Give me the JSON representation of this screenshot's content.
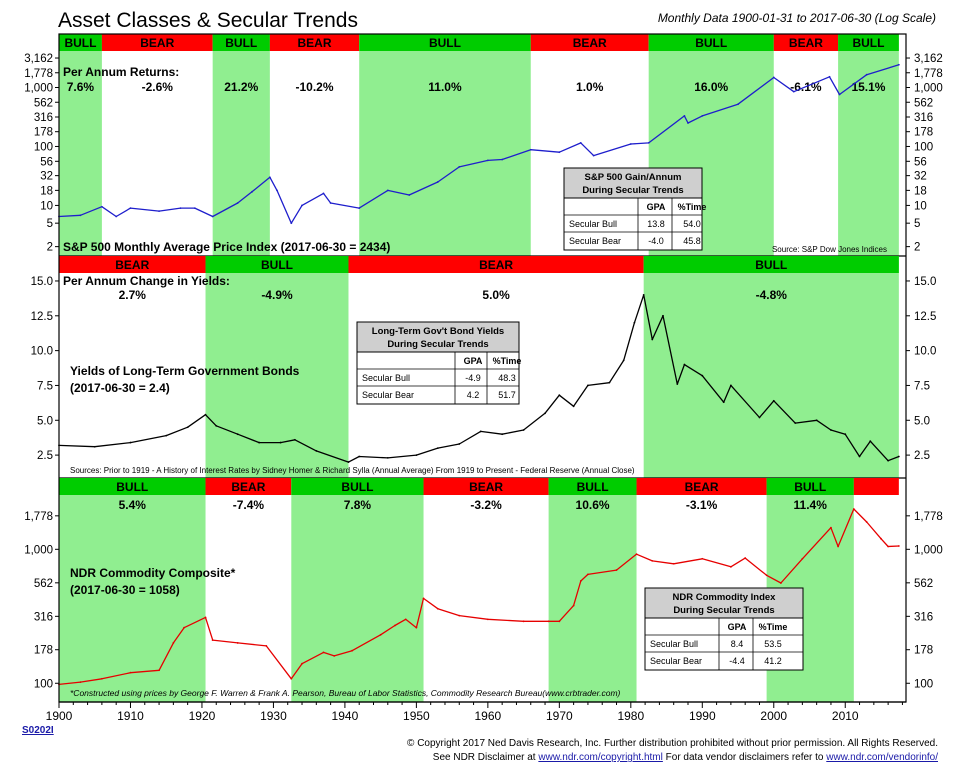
{
  "header": {
    "title": "Asset Classes & Secular Trends",
    "subtitle": "Monthly Data 1900-01-31 to 2017-06-30 (Log Scale)"
  },
  "colors": {
    "bull": "#90ee90",
    "bear": "#ff0000",
    "bull_label": "#00cc00",
    "sp_line": "#1e1ecc",
    "yield_line": "#000000",
    "cmd_line": "#e60000"
  },
  "chart_data": [
    {
      "type": "line",
      "title": "S&P 500 Monthly Average Price Index (2017-06-30 = 2434)",
      "regimes_heading": "Per Annum Returns:",
      "scale": "log",
      "ylim": [
        1.5,
        4000
      ],
      "yticks": [
        "3,162",
        "1,778",
        "1,000",
        "562",
        "316",
        "178",
        "100",
        "56",
        "32",
        "18",
        "10",
        "5",
        "2"
      ],
      "ytick_values": [
        3162,
        1778,
        1000,
        562,
        316,
        178,
        100,
        56,
        32,
        18,
        10,
        5,
        2
      ],
      "source": "Source:  S&P Dow Jones Indices",
      "regimes": [
        {
          "label": "BULL",
          "start": 1900,
          "end": 1906,
          "ret": "7.6%"
        },
        {
          "label": "BEAR",
          "start": 1906,
          "end": 1921.5,
          "ret": "-2.6%"
        },
        {
          "label": "BULL",
          "start": 1921.5,
          "end": 1929.5,
          "ret": "21.2%"
        },
        {
          "label": "BEAR",
          "start": 1929.5,
          "end": 1942,
          "ret": "-10.2%"
        },
        {
          "label": "BULL",
          "start": 1942,
          "end": 1966,
          "ret": "11.0%"
        },
        {
          "label": "BEAR",
          "start": 1966,
          "end": 1982.5,
          "ret": "1.0%"
        },
        {
          "label": "BULL",
          "start": 1982.5,
          "end": 2000,
          "ret": "16.0%"
        },
        {
          "label": "BEAR",
          "start": 2000,
          "end": 2009,
          "ret": "-6.1%"
        },
        {
          "label": "BULL",
          "start": 2009,
          "end": 2017.5,
          "ret": "15.1%"
        }
      ],
      "series": [
        {
          "x": [
            1900,
            1903,
            1906,
            1908,
            1910,
            1914,
            1917,
            1919,
            1921.5,
            1925,
            1927,
            1929.5,
            1930.5,
            1932.5,
            1934,
            1937,
            1938,
            1942,
            1946,
            1949,
            1953,
            1956,
            1960,
            1962,
            1966,
            1970,
            1973,
            1974.8,
            1980,
            1982.5,
            1987.5,
            1988,
            1990,
            1995,
            2000,
            2002.8,
            2007.8,
            2009.2,
            2013,
            2017.5
          ],
          "y": [
            6.5,
            6.8,
            9.5,
            6.5,
            9,
            8,
            9,
            9,
            6.5,
            11,
            17,
            30,
            18,
            5,
            10,
            16,
            11,
            9,
            18,
            15,
            25,
            45,
            58,
            60,
            88,
            80,
            115,
            70,
            110,
            115,
            330,
            250,
            330,
            520,
            1480,
            850,
            1520,
            760,
            1650,
            2430
          ]
        }
      ],
      "table": {
        "title": "S&P 500 Gain/Annum During Secular Trends",
        "headers": [
          "",
          "GPA",
          "%Time"
        ],
        "rows": [
          [
            "Secular Bull",
            "13.8",
            "54.0"
          ],
          [
            "Secular Bear",
            "-4.0",
            "45.8"
          ]
        ]
      }
    },
    {
      "type": "line",
      "title": "Yields of Long-Term Government Bonds (2017-06-30 = 2.4)",
      "regimes_heading": "Per Annum Change in Yields:",
      "scale": "linear",
      "ylim": [
        1.0,
        15.5
      ],
      "yticks": [
        "15.0",
        "12.5",
        "10.0",
        "7.5",
        "5.0",
        "2.5"
      ],
      "ytick_values": [
        15,
        12.5,
        10,
        7.5,
        5,
        2.5
      ],
      "source": "Sources: Prior to 1919 - A History of Interest Rates by Sidney Homer & Richard Sylla (Annual Average) From 1919 to Present - Federal Reserve (Annual Close)",
      "regimes": [
        {
          "label": "BEAR",
          "start": 1900,
          "end": 1920.5,
          "ret": "2.7%"
        },
        {
          "label": "BULL",
          "start": 1920.5,
          "end": 1940.5,
          "ret": "-4.9%"
        },
        {
          "label": "BEAR",
          "start": 1940.5,
          "end": 1981.8,
          "ret": "5.0%"
        },
        {
          "label": "BULL",
          "start": 1981.8,
          "end": 2017.5,
          "ret": "-4.8%"
        }
      ],
      "series": [
        {
          "x": [
            1900,
            1905,
            1910,
            1915,
            1918,
            1920.5,
            1922,
            1925,
            1928,
            1931,
            1933,
            1936,
            1940.5,
            1942,
            1946,
            1950,
            1953,
            1956,
            1959,
            1962,
            1965,
            1968,
            1970,
            1972,
            1974,
            1977,
            1979,
            1980.5,
            1981.8,
            1983,
            1984.5,
            1986.5,
            1987.5,
            1990,
            1993,
            1994,
            1998,
            2000,
            2003,
            2006,
            2008,
            2010,
            2012,
            2013.5,
            2016,
            2017.5
          ],
          "y": [
            3.2,
            3.1,
            3.4,
            3.9,
            4.5,
            5.4,
            4.6,
            4.0,
            3.4,
            3.4,
            3.6,
            2.8,
            2.0,
            2.4,
            2.3,
            2.5,
            3.0,
            3.3,
            4.2,
            4.0,
            4.3,
            5.5,
            6.8,
            6.0,
            7.5,
            7.7,
            9.3,
            12.0,
            14.0,
            10.8,
            12.5,
            7.6,
            9.0,
            8.2,
            6.3,
            7.5,
            5.2,
            6.4,
            4.8,
            5.0,
            4.3,
            4.0,
            2.4,
            3.5,
            2.1,
            2.4
          ]
        }
      ],
      "table": {
        "title": "Long-Term Gov't Bond Yields During Secular Trends",
        "headers": [
          "",
          "GPA",
          "%Time"
        ],
        "rows": [
          [
            "Secular Bull",
            "-4.9",
            "48.3"
          ],
          [
            "Secular Bear",
            "4.2",
            "51.7"
          ]
        ]
      }
    },
    {
      "type": "line",
      "title": "NDR Commodity Composite* (2017-06-30 = 1058)",
      "regimes_heading": "",
      "scale": "log",
      "ylim": [
        75,
        2500
      ],
      "yticks": [
        "1,778",
        "1,000",
        "562",
        "316",
        "178",
        "100"
      ],
      "ytick_values": [
        1778,
        1000,
        562,
        316,
        178,
        100
      ],
      "source": "*Constructed using prices by George F. Warren & Frank A. Pearson, Bureau of Labor Statistics, Commodity Research Bureau(www.crbtrader.com)",
      "regimes": [
        {
          "label": "BULL",
          "start": 1900,
          "end": 1920.5,
          "ret": "5.4%"
        },
        {
          "label": "BEAR",
          "start": 1920.5,
          "end": 1932.5,
          "ret": "-7.4%"
        },
        {
          "label": "BULL",
          "start": 1932.5,
          "end": 1951,
          "ret": "7.8%"
        },
        {
          "label": "BEAR",
          "start": 1951,
          "end": 1968.5,
          "ret": "-3.2%"
        },
        {
          "label": "BULL",
          "start": 1968.5,
          "end": 1980.8,
          "ret": "10.6%"
        },
        {
          "label": "BEAR",
          "start": 1980.8,
          "end": 1999,
          "ret": "-3.1%"
        },
        {
          "label": "BULL",
          "start": 1999,
          "end": 2011.2,
          "ret": "11.4%"
        },
        {
          "label": "",
          "start": 2011.2,
          "end": 2017.5,
          "ret": ""
        }
      ],
      "series": [
        {
          "x": [
            1900,
            1903,
            1906,
            1910,
            1914,
            1916,
            1917.5,
            1920.5,
            1921.5,
            1925,
            1929,
            1932.5,
            1934,
            1937,
            1938.5,
            1941,
            1945,
            1947,
            1948.5,
            1950,
            1951,
            1953,
            1956,
            1960,
            1965,
            1968.5,
            1970,
            1972,
            1973,
            1974,
            1978,
            1980.8,
            1983,
            1986,
            1990,
            1994,
            1996,
            1999,
            2001,
            2004,
            2008,
            2009,
            2011.2,
            2013,
            2015,
            2016,
            2017.5
          ],
          "y": [
            98,
            102,
            108,
            120,
            125,
            200,
            260,
            310,
            210,
            200,
            190,
            108,
            140,
            170,
            160,
            175,
            230,
            270,
            300,
            260,
            430,
            360,
            320,
            300,
            290,
            290,
            290,
            380,
            580,
            650,
            700,
            920,
            820,
            780,
            850,
            740,
            860,
            640,
            560,
            850,
            1450,
            1050,
            2000,
            1600,
            1200,
            1050,
            1058
          ]
        }
      ],
      "table": {
        "title": "NDR Commodity Index During Secular Trends",
        "headers": [
          "",
          "GPA",
          "%Time"
        ],
        "rows": [
          [
            "Secular Bull",
            "8.4",
            "53.5"
          ],
          [
            "Secular Bear",
            "-4.4",
            "41.2"
          ]
        ]
      }
    }
  ],
  "x_axis": {
    "ticks": [
      1900,
      1910,
      1920,
      1930,
      1940,
      1950,
      1960,
      1970,
      1980,
      1990,
      2000,
      2010
    ],
    "tick_labels": [
      "1900",
      "1910",
      "1920",
      "1930",
      "1940",
      "1950",
      "1960",
      "1970",
      "1980",
      "1990",
      "2000",
      "2010"
    ],
    "xlim": [
      1900,
      2018.5
    ]
  },
  "footer": {
    "code": "S0202I",
    "copyright": "© Copyright 2017 Ned Davis Research, Inc. Further distribution prohibited without prior permission. All Rights Reserved.",
    "disclaimer_prefix": "See NDR Disclaimer at ",
    "disclaimer_url": "www.ndr.com/copyright.html",
    "vendor_prefix": "   For data vendor disclaimers refer to ",
    "vendor_url": "www.ndr.com/vendorinfo/"
  }
}
